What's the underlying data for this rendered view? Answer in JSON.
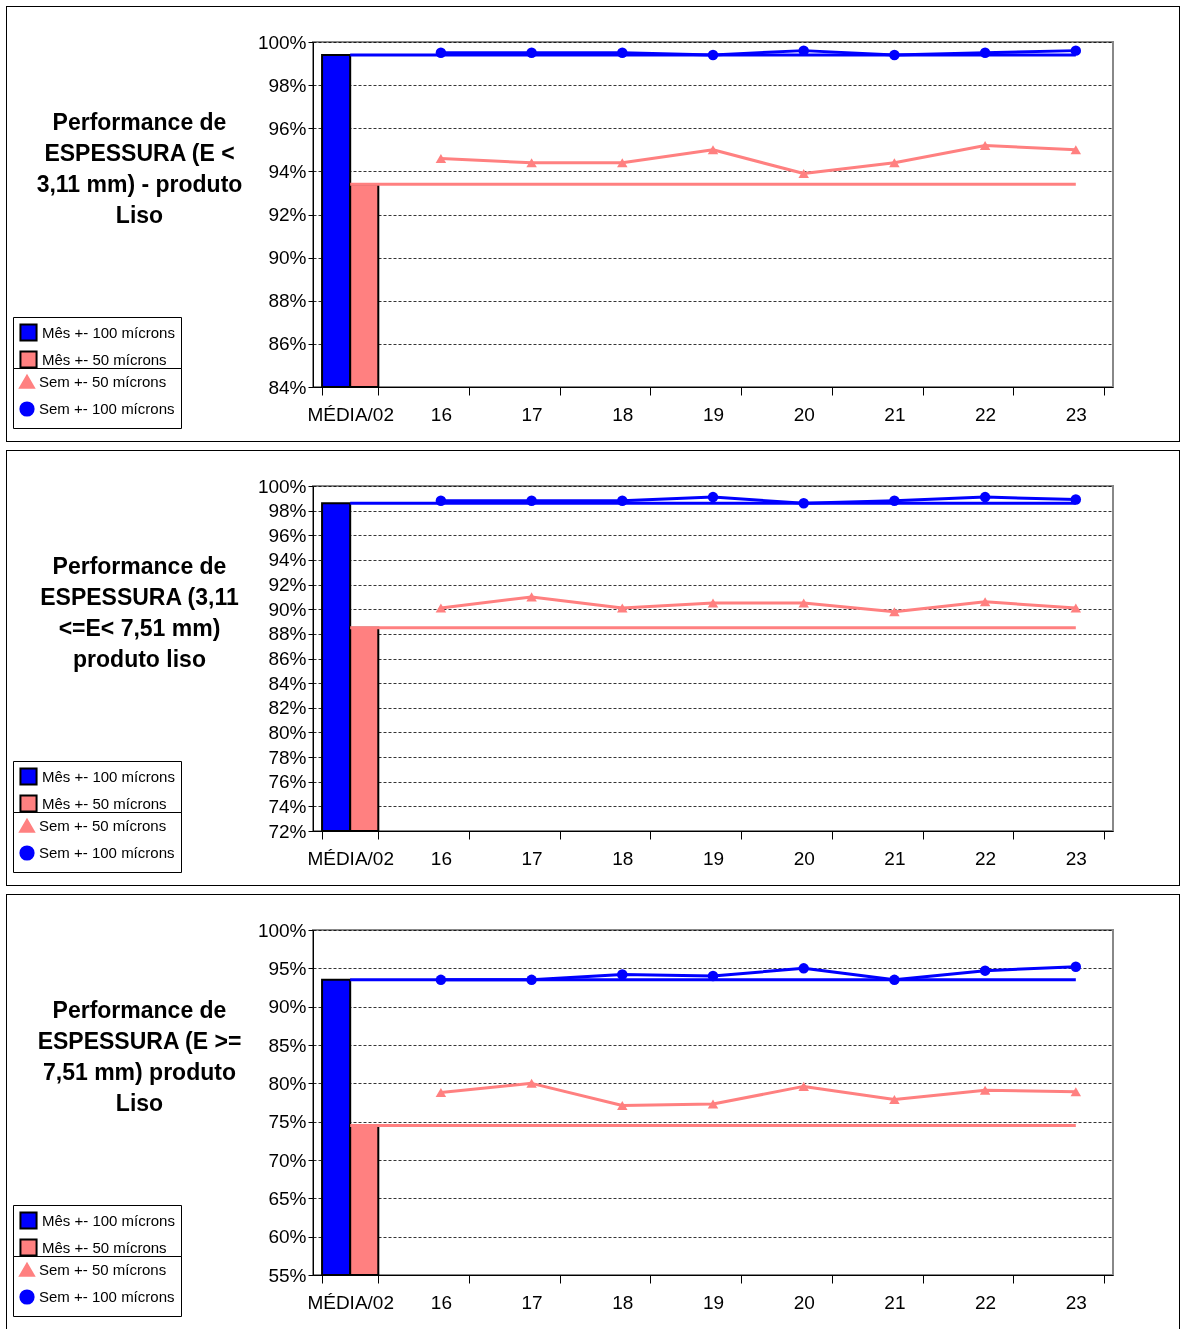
{
  "chart_data": [
    {
      "type": "bar",
      "title": "Performance de ESPESSURA (E < 3,11 mm) - produto Liso",
      "categories": [
        "MÉDIA/02",
        "16",
        "17",
        "18",
        "19",
        "20",
        "21",
        "22",
        "23"
      ],
      "series": [
        {
          "name": "Mês +- 100 mícrons",
          "type": "bar",
          "color": "#0000ff",
          "values": [
            99.4,
            null,
            null,
            null,
            null,
            null,
            null,
            null,
            null
          ]
        },
        {
          "name": "Mês +- 50 mícrons",
          "type": "bar",
          "color": "#ff8080",
          "values": [
            93.4,
            null,
            null,
            null,
            null,
            null,
            null,
            null,
            null
          ]
        },
        {
          "name": "Sem +- 50 mícrons",
          "type": "line",
          "color": "#ff8080",
          "marker": "triangle",
          "values": [
            null,
            94.6,
            94.4,
            94.4,
            95.0,
            93.9,
            94.4,
            95.2,
            95.0
          ]
        },
        {
          "type": "line",
          "color": "#0000ff",
          "marker": "none",
          "values": [
            99.4,
            99.4,
            99.4,
            99.4,
            99.4,
            99.4,
            99.4,
            99.4,
            99.4
          ]
        },
        {
          "type": "line",
          "color": "#ff8080",
          "marker": "none",
          "values": [
            93.4,
            93.4,
            93.4,
            93.4,
            93.4,
            93.4,
            93.4,
            93.4,
            93.4
          ]
        },
        {
          "name": "Sem +- 100 mícrons",
          "type": "line",
          "color": "#0000ff",
          "marker": "circle",
          "values": [
            null,
            99.5,
            99.5,
            99.5,
            99.4,
            99.6,
            99.4,
            99.5,
            99.6
          ]
        }
      ],
      "ylim": [
        84,
        100
      ],
      "yticks": [
        {
          "value": 84,
          "label": "84%"
        },
        {
          "value": 86,
          "label": "86%"
        },
        {
          "value": 88,
          "label": "88%"
        },
        {
          "value": 90,
          "label": "90%"
        },
        {
          "value": 92,
          "label": "92%"
        },
        {
          "value": 94,
          "label": "94%"
        },
        {
          "value": 96,
          "label": "96%"
        },
        {
          "value": 98,
          "label": "98%"
        },
        {
          "value": 100,
          "label": "100%"
        }
      ],
      "grid": "y",
      "legend": "left"
    },
    {
      "type": "bar",
      "title": "Performance de ESPESSURA (3,11 <=E< 7,51 mm) produto liso",
      "categories": [
        "MÉDIA/02",
        "16",
        "17",
        "18",
        "19",
        "20",
        "21",
        "22",
        "23"
      ],
      "series": [
        {
          "name": "Mês +- 100 mícrons",
          "type": "bar",
          "color": "#0000ff",
          "values": [
            98.6,
            null,
            null,
            null,
            null,
            null,
            null,
            null,
            null
          ]
        },
        {
          "name": "Mês +- 50 mícrons",
          "type": "bar",
          "color": "#ff8080",
          "values": [
            88.5,
            null,
            null,
            null,
            null,
            null,
            null,
            null,
            null
          ]
        },
        {
          "name": "Sem +- 50 mícrons",
          "type": "line",
          "color": "#ff8080",
          "marker": "triangle",
          "values": [
            null,
            90.1,
            91.0,
            90.1,
            90.5,
            90.5,
            89.8,
            90.6,
            90.1
          ]
        },
        {
          "type": "line",
          "color": "#0000ff",
          "marker": "none",
          "values": [
            98.6,
            98.6,
            98.6,
            98.6,
            98.6,
            98.6,
            98.6,
            98.6,
            98.6
          ]
        },
        {
          "type": "line",
          "color": "#ff8080",
          "marker": "none",
          "values": [
            88.5,
            88.5,
            88.5,
            88.5,
            88.5,
            88.5,
            88.5,
            88.5,
            88.5
          ]
        },
        {
          "name": "Sem +- 100 mícrons",
          "type": "line",
          "color": "#0000ff",
          "marker": "circle",
          "values": [
            null,
            98.8,
            98.8,
            98.8,
            99.1,
            98.6,
            98.8,
            99.1,
            98.9
          ]
        }
      ],
      "ylim": [
        72,
        100
      ],
      "yticks": [
        {
          "value": 72,
          "label": "72%"
        },
        {
          "value": 74,
          "label": "74%"
        },
        {
          "value": 76,
          "label": "76%"
        },
        {
          "value": 78,
          "label": "78%"
        },
        {
          "value": 80,
          "label": "80%"
        },
        {
          "value": 82,
          "label": "82%"
        },
        {
          "value": 84,
          "label": "84%"
        },
        {
          "value": 86,
          "label": "86%"
        },
        {
          "value": 88,
          "label": "88%"
        },
        {
          "value": 90,
          "label": "90%"
        },
        {
          "value": 92,
          "label": "92%"
        },
        {
          "value": 94,
          "label": "94%"
        },
        {
          "value": 96,
          "label": "96%"
        },
        {
          "value": 98,
          "label": "98%"
        },
        {
          "value": 100,
          "label": "100%"
        }
      ],
      "grid": "y",
      "legend": "left"
    },
    {
      "type": "bar",
      "title": "Performance de ESPESSURA (E >= 7,51 mm) produto Liso",
      "categories": [
        "MÉDIA/02",
        "16",
        "17",
        "18",
        "19",
        "20",
        "21",
        "22",
        "23"
      ],
      "series": [
        {
          "name": "Mês +- 100 mícrons",
          "type": "bar",
          "color": "#0000ff",
          "values": [
            93.5,
            null,
            null,
            null,
            null,
            null,
            null,
            null,
            null
          ]
        },
        {
          "name": "Mês +- 50 mícrons",
          "type": "bar",
          "color": "#ff8080",
          "values": [
            74.5,
            null,
            null,
            null,
            null,
            null,
            null,
            null,
            null
          ]
        },
        {
          "name": "Sem +- 50 mícrons",
          "type": "line",
          "color": "#ff8080",
          "marker": "triangle",
          "values": [
            null,
            78.8,
            80.0,
            77.1,
            77.3,
            79.6,
            77.9,
            79.1,
            78.9
          ]
        },
        {
          "type": "line",
          "color": "#0000ff",
          "marker": "none",
          "values": [
            93.5,
            93.5,
            93.5,
            93.5,
            93.5,
            93.5,
            93.5,
            93.5,
            93.5
          ]
        },
        {
          "type": "line",
          "color": "#ff8080",
          "marker": "none",
          "values": [
            74.5,
            74.5,
            74.5,
            74.5,
            74.5,
            74.5,
            74.5,
            74.5,
            74.5
          ]
        },
        {
          "name": "Sem +- 100 mícrons",
          "type": "line",
          "color": "#0000ff",
          "marker": "circle",
          "values": [
            null,
            93.5,
            93.5,
            94.2,
            94.0,
            95.0,
            93.5,
            94.7,
            95.2
          ]
        }
      ],
      "ylim": [
        55,
        100
      ],
      "yticks": [
        {
          "value": 55,
          "label": "55%"
        },
        {
          "value": 60,
          "label": "60%"
        },
        {
          "value": 65,
          "label": "65%"
        },
        {
          "value": 70,
          "label": "70%"
        },
        {
          "value": 75,
          "label": "75%"
        },
        {
          "value": 80,
          "label": "80%"
        },
        {
          "value": 85,
          "label": "85%"
        },
        {
          "value": 90,
          "label": "90%"
        },
        {
          "value": 95,
          "label": "95%"
        },
        {
          "value": 100,
          "label": "100%"
        }
      ],
      "grid": "y",
      "legend": "left"
    }
  ]
}
